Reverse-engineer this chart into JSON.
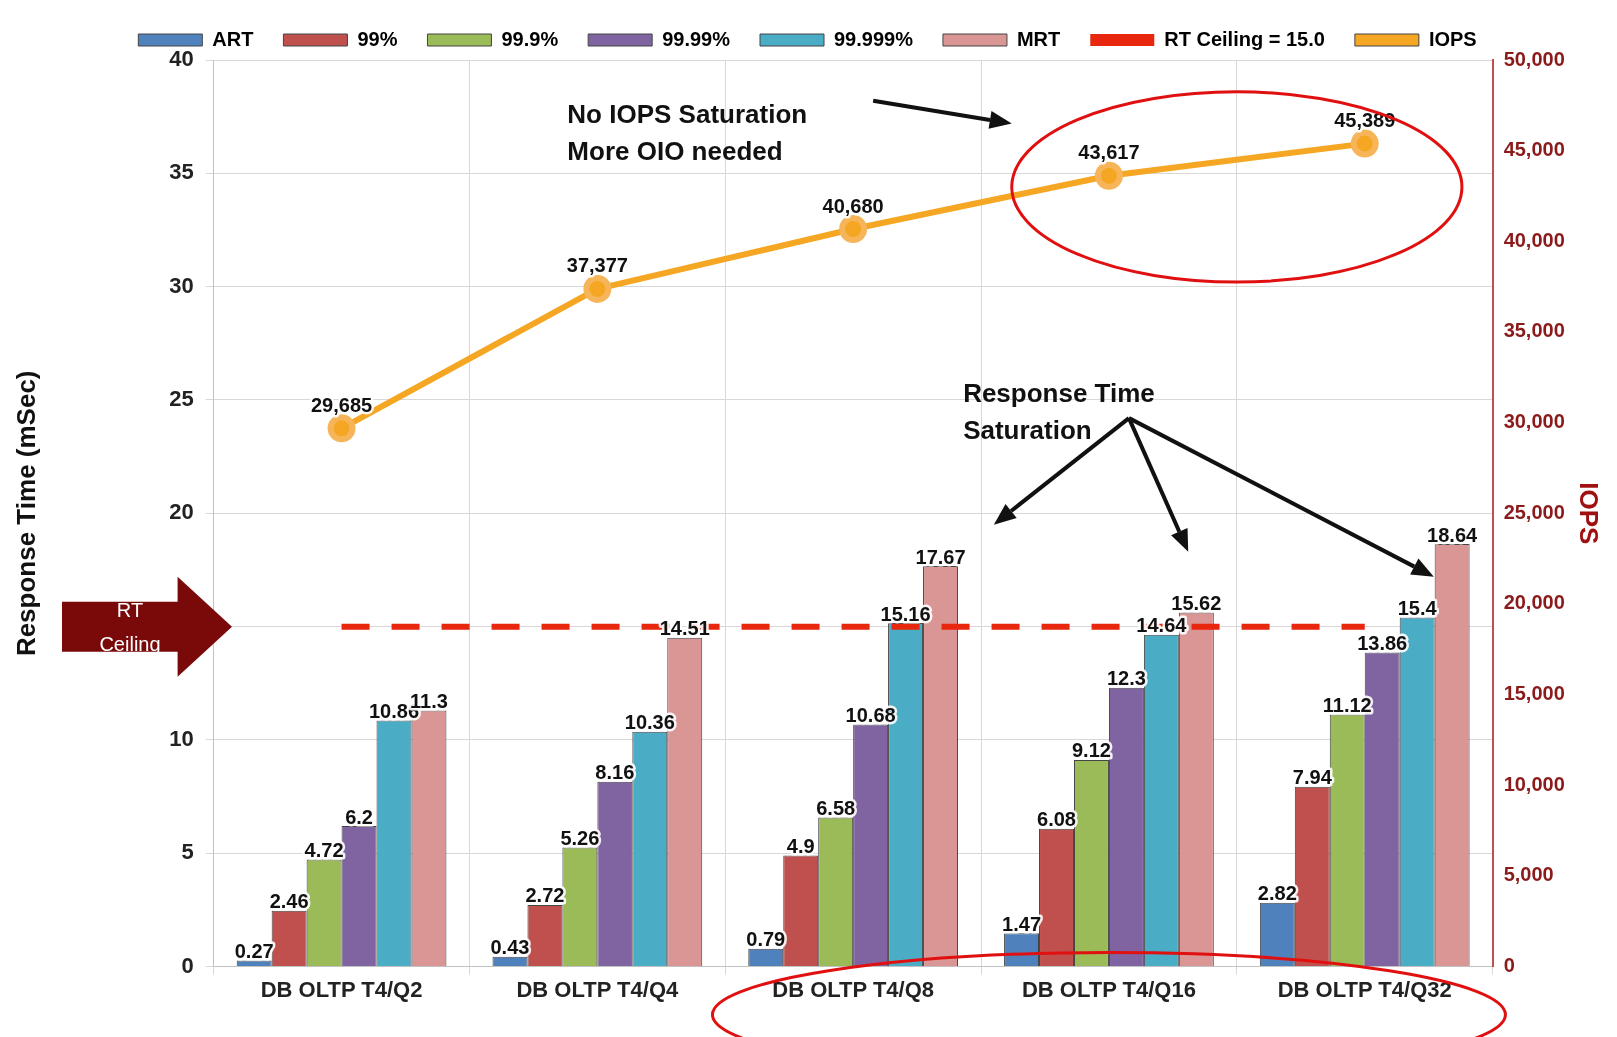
{
  "chart_data": {
    "type": "bar",
    "ylabel": "Response Time (mSec)",
    "y2label": "IOPS",
    "categories": [
      "DB OLTP T4/Q2",
      "DB OLTP T4/Q4",
      "DB OLTP T4/Q8",
      "DB OLTP T4/Q16",
      "DB OLTP T4/Q32"
    ],
    "series": [
      {
        "name": "ART",
        "color": "#4f81bd",
        "values": [
          0.27,
          0.43,
          0.79,
          1.47,
          2.82
        ]
      },
      {
        "name": "99%",
        "color": "#c0504d",
        "values": [
          2.46,
          2.72,
          4.9,
          6.08,
          7.94
        ]
      },
      {
        "name": "99.9%",
        "color": "#9bbb59",
        "values": [
          4.72,
          5.26,
          6.58,
          9.12,
          11.12
        ]
      },
      {
        "name": "99.99%",
        "color": "#8064a2",
        "values": [
          6.2,
          8.16,
          10.68,
          12.3,
          13.86
        ]
      },
      {
        "name": "99.999%",
        "color": "#4bacc6",
        "values": [
          10.86,
          10.36,
          15.16,
          14.64,
          15.4
        ]
      },
      {
        "name": "MRT",
        "color": "#d99694",
        "values": [
          11.3,
          14.51,
          17.67,
          15.62,
          18.64
        ]
      },
      {
        "name": "IOPS",
        "type": "line",
        "axis": "y2",
        "marker": "circle",
        "color": "#f5a623",
        "values": [
          29685,
          37377,
          40680,
          43617,
          45389
        ],
        "value_labels": [
          "29,685",
          "37,377",
          "40,680",
          "43,617",
          "45,389"
        ]
      }
    ],
    "ylim": [
      0,
      40
    ],
    "yticks": [
      0,
      5,
      10,
      {
        "value": 15,
        "label": null
      },
      20,
      25,
      30,
      35,
      40
    ],
    "y2lim": [
      0,
      50000
    ],
    "y2ticks": [
      0,
      {
        "value": 5000,
        "label": "5,000"
      },
      {
        "value": 10000,
        "label": "10,000"
      },
      {
        "value": 15000,
        "label": "15,000"
      },
      {
        "value": 20000,
        "label": "20,000"
      },
      {
        "value": 25000,
        "label": "25,000"
      },
      {
        "value": 30000,
        "label": "30,000"
      },
      {
        "value": 35000,
        "label": "35,000"
      },
      {
        "value": 40000,
        "label": "40,000"
      },
      {
        "value": 45000,
        "label": "45,000"
      },
      {
        "value": 50000,
        "label": "50,000"
      }
    ],
    "ref_lines": [
      {
        "axis": "y",
        "value": 15,
        "label": "RT Ceiling = 15.0",
        "color": "#e8270e",
        "line_style": "dashed"
      }
    ],
    "annotations": [
      "No IOPS Saturation\nMore OIO needed",
      "Response Time\nSaturation",
      "RT\nCeiling"
    ],
    "grid": true,
    "legend": "top",
    "data_labels": true
  }
}
